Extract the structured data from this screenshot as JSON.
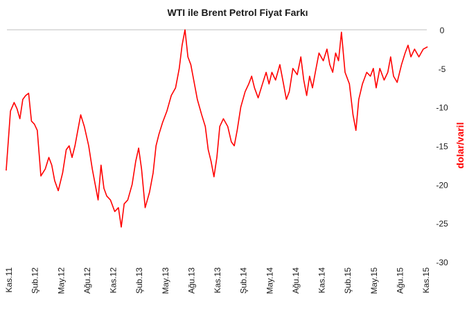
{
  "chart_data": {
    "type": "line",
    "title": "WTI ile Brent Petrol Fiyat Farkı",
    "xlabel": "",
    "ylabel": "dolar/varil",
    "ylim": [
      -30,
      0
    ],
    "y_ticks": [
      "0",
      "-5",
      "-10",
      "-15",
      "-20",
      "-25",
      "-30"
    ],
    "y_tick_values": [
      0,
      -5,
      -10,
      -15,
      -20,
      -25,
      -30
    ],
    "x_tick_labels": [
      "Kas.11",
      "Şub.12",
      "May.12",
      "Ağu.12",
      "Kas.12",
      "Şub.13",
      "May.13",
      "Ağu.13",
      "Kas.13",
      "Şub.14",
      "May.14",
      "Ağu.14",
      "Kas.14",
      "Şub.15",
      "May.15",
      "Ağu.15",
      "Kas.15"
    ],
    "grid": false,
    "line_color": "#ff0000",
    "series": [
      {
        "name": "",
        "x": [
          "2011-11",
          "2011-11",
          "2011-12",
          "2011-12",
          "2011-12",
          "2012-01",
          "2012-01",
          "2012-01",
          "2012-02",
          "2012-02",
          "2012-02",
          "2012-03",
          "2012-03",
          "2012-04",
          "2012-04",
          "2012-04",
          "2012-05",
          "2012-05",
          "2012-06",
          "2012-06",
          "2012-06",
          "2012-07",
          "2012-07",
          "2012-07",
          "2012-08",
          "2012-08",
          "2012-09",
          "2012-09",
          "2012-09",
          "2012-10",
          "2012-10",
          "2012-10",
          "2012-11",
          "2012-11",
          "2012-12",
          "2012-12",
          "2012-12",
          "2013-01",
          "2013-01",
          "2013-02",
          "2013-02",
          "2013-02",
          "2013-03",
          "2013-03",
          "2013-04",
          "2013-04",
          "2013-04",
          "2013-05",
          "2013-05",
          "2013-06",
          "2013-06",
          "2013-07",
          "2013-07",
          "2013-07",
          "2013-08",
          "2013-08",
          "2013-08",
          "2013-09",
          "2013-09",
          "2013-10",
          "2013-10",
          "2013-10",
          "2013-11",
          "2013-11",
          "2013-11",
          "2013-12",
          "2013-12",
          "2014-01",
          "2014-01",
          "2014-01",
          "2014-02",
          "2014-02",
          "2014-03",
          "2014-03",
          "2014-03",
          "2014-04",
          "2014-04",
          "2014-05",
          "2014-05",
          "2014-05",
          "2014-06",
          "2014-06",
          "2014-07",
          "2014-07",
          "2014-07",
          "2014-08",
          "2014-08",
          "2014-09",
          "2014-09",
          "2014-09",
          "2014-10",
          "2014-10",
          "2014-10",
          "2014-11",
          "2014-11",
          "2014-12",
          "2014-12",
          "2014-12",
          "2015-01",
          "2015-01",
          "2015-01",
          "2015-02",
          "2015-02",
          "2015-03",
          "2015-03",
          "2015-03",
          "2015-04",
          "2015-04",
          "2015-05",
          "2015-05",
          "2015-05",
          "2015-06",
          "2015-06",
          "2015-07",
          "2015-07",
          "2015-07",
          "2015-08",
          "2015-08",
          "2015-09",
          "2015-09",
          "2015-09",
          "2015-10",
          "2015-10",
          "2015-11",
          "2015-11"
        ],
        "values": [
          -18.2,
          -10.5,
          -9.4,
          -10.2,
          -11.5,
          -9.0,
          -8.5,
          -8.2,
          -11.8,
          -12.2,
          -13.0,
          -18.9,
          -18.0,
          -16.5,
          -17.5,
          -19.5,
          -20.8,
          -18.5,
          -15.5,
          -15.0,
          -16.5,
          -15.0,
          -13.0,
          -11.0,
          -12.5,
          -15.0,
          -18.0,
          -20.0,
          -22.0,
          -17.5,
          -20.5,
          -21.5,
          -22.0,
          -23.5,
          -23.0,
          -25.5,
          -22.5,
          -22.0,
          -20.0,
          -17.0,
          -15.3,
          -18.0,
          -23.0,
          -21.0,
          -18.5,
          -15.0,
          -13.5,
          -12.0,
          -10.5,
          -8.5,
          -7.5,
          -5.0,
          -2.0,
          0.0,
          -3.5,
          -4.5,
          -6.5,
          -9.0,
          -11.0,
          -12.5,
          -15.5,
          -17.0,
          -19.0,
          -16.5,
          -12.5,
          -11.5,
          -12.5,
          -14.5,
          -15.0,
          -13.0,
          -10.0,
          -8.0,
          -7.0,
          -6.0,
          -7.5,
          -8.8,
          -7.0,
          -5.5,
          -7.0,
          -5.5,
          -6.5,
          -4.5,
          -7.0,
          -9.0,
          -8.0,
          -5.0,
          -5.8,
          -3.5,
          -6.5,
          -8.5,
          -6.0,
          -7.5,
          -5.5,
          -3.0,
          -4.0,
          -2.5,
          -4.5,
          -5.5,
          -3.0,
          -4.0,
          -0.3,
          -5.5,
          -7.0,
          -11.0,
          -13.0,
          -9.0,
          -7.0,
          -5.5,
          -6.0,
          -5.0,
          -7.5,
          -5.0,
          -6.5,
          -5.5,
          -3.5,
          -6.0,
          -6.8,
          -4.5,
          -3.0,
          -2.0,
          -3.5,
          -2.5,
          -3.5,
          -2.5,
          -2.2
        ]
      }
    ]
  }
}
